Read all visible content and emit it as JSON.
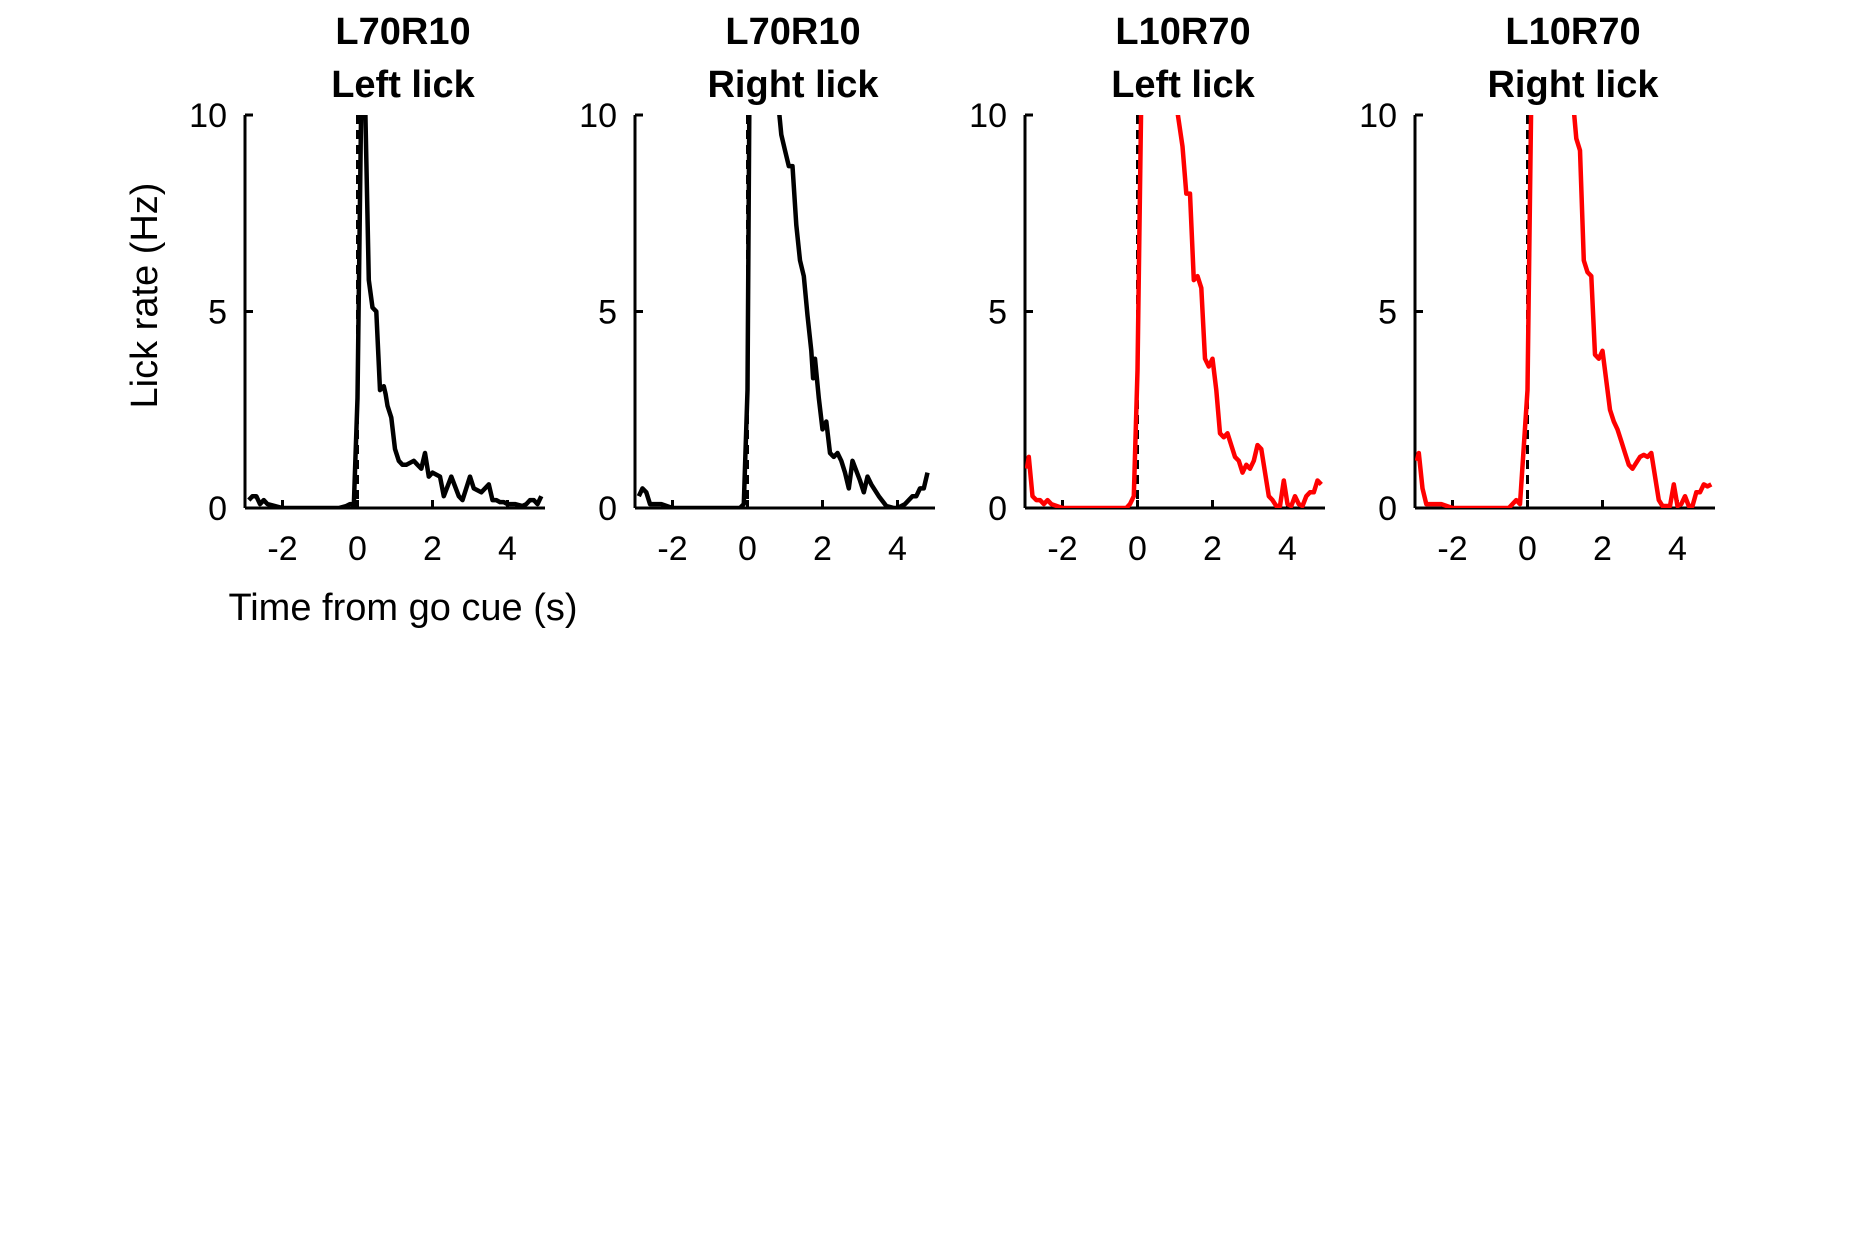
{
  "chart_data": [
    {
      "type": "line",
      "title": [
        "L70R10",
        "Left lick"
      ],
      "ylabel": "Lick rate (Hz)",
      "xlabel": "Time from go cue (s)",
      "xlim": [
        -3,
        5
      ],
      "ylim": [
        0,
        10
      ],
      "xticks": [
        -2,
        0,
        2,
        4
      ],
      "yticks": [
        0,
        5,
        10
      ],
      "go_cue": 0,
      "color": "#000000",
      "x": [
        -2.9,
        -2.8,
        -2.7,
        -2.6,
        -2.5,
        -2.4,
        -2.2,
        -2,
        -1.5,
        -1,
        -0.5,
        -0.3,
        -0.2,
        -0.15,
        -0.1,
        0,
        0.1,
        0.2,
        0.3,
        0.4,
        0.5,
        0.6,
        0.7,
        0.75,
        0.8,
        0.9,
        1.0,
        1.1,
        1.2,
        1.3,
        1.5,
        1.6,
        1.7,
        1.8,
        1.9,
        2.0,
        2.2,
        2.3,
        2.5,
        2.7,
        2.8,
        3.0,
        3.1,
        3.3,
        3.5,
        3.6,
        3.7,
        3.8,
        3.9,
        4.0,
        4.2,
        4.4,
        4.5,
        4.6,
        4.7,
        4.8,
        4.9
      ],
      "y": [
        0.2,
        0.3,
        0.3,
        0.1,
        0.2,
        0.1,
        0.05,
        0,
        0,
        0,
        0,
        0.05,
        0.1,
        0.1,
        0.05,
        2.8,
        10.5,
        10.5,
        5.8,
        5.1,
        5.0,
        3.0,
        3.1,
        2.9,
        2.6,
        2.3,
        1.5,
        1.2,
        1.1,
        1.1,
        1.2,
        1.1,
        1.0,
        1.4,
        0.8,
        0.9,
        0.8,
        0.3,
        0.8,
        0.3,
        0.2,
        0.8,
        0.5,
        0.4,
        0.6,
        0.2,
        0.2,
        0.15,
        0.15,
        0.1,
        0.1,
        0.05,
        0.1,
        0.2,
        0.2,
        0.1,
        0.3
      ]
    },
    {
      "type": "line",
      "title": [
        "L70R10",
        "Right lick"
      ],
      "xlim": [
        -3,
        5
      ],
      "ylim": [
        0,
        10
      ],
      "xticks": [
        -2,
        0,
        2,
        4
      ],
      "yticks": [
        0,
        5,
        10
      ],
      "go_cue": 0,
      "color": "#000000",
      "x": [
        -2.9,
        -2.8,
        -2.7,
        -2.6,
        -2.5,
        -2.3,
        -2.0,
        -1.5,
        -1.0,
        -0.5,
        -0.2,
        -0.1,
        0,
        0.05,
        0.1,
        0.2,
        0.5,
        0.8,
        0.9,
        1.0,
        1.1,
        1.2,
        1.3,
        1.4,
        1.5,
        1.6,
        1.7,
        1.75,
        1.8,
        1.9,
        2.0,
        2.1,
        2.2,
        2.3,
        2.4,
        2.5,
        2.6,
        2.7,
        2.8,
        3.0,
        3.1,
        3.2,
        3.3,
        3.5,
        3.7,
        3.9,
        4.0,
        4.2,
        4.3,
        4.4,
        4.5,
        4.6,
        4.7,
        4.8
      ],
      "y": [
        0.3,
        0.5,
        0.4,
        0.1,
        0.1,
        0.1,
        0,
        0,
        0,
        0,
        0,
        0.1,
        3.0,
        10.5,
        10.5,
        10.5,
        10.5,
        10.5,
        9.5,
        9.1,
        8.7,
        8.7,
        7.2,
        6.3,
        5.9,
        4.9,
        4.0,
        3.3,
        3.8,
        2.8,
        2.0,
        2.2,
        1.4,
        1.3,
        1.4,
        1.2,
        0.9,
        0.5,
        1.2,
        0.7,
        0.4,
        0.8,
        0.6,
        0.3,
        0.05,
        0,
        0,
        0.1,
        0.2,
        0.3,
        0.3,
        0.5,
        0.5,
        0.9
      ]
    },
    {
      "type": "line",
      "title": [
        "L10R70",
        "Left lick"
      ],
      "xlim": [
        -3,
        5
      ],
      "ylim": [
        0,
        10
      ],
      "xticks": [
        -2,
        0,
        2,
        4
      ],
      "yticks": [
        0,
        5,
        10
      ],
      "go_cue": 0,
      "color": "#ff0000",
      "x": [
        -2.95,
        -2.9,
        -2.8,
        -2.7,
        -2.6,
        -2.5,
        -2.4,
        -2.3,
        -2.0,
        -1.5,
        -1.0,
        -0.5,
        -0.3,
        -0.2,
        -0.1,
        0,
        0.1,
        0.5,
        0.9,
        1.0,
        1.2,
        1.3,
        1.4,
        1.5,
        1.6,
        1.7,
        1.8,
        1.9,
        2.0,
        2.1,
        2.2,
        2.3,
        2.4,
        2.6,
        2.7,
        2.8,
        2.9,
        3.0,
        3.1,
        3.2,
        3.3,
        3.5,
        3.6,
        3.7,
        3.8,
        3.9,
        4.0,
        4.1,
        4.2,
        4.3,
        4.4,
        4.5,
        4.6,
        4.7,
        4.8,
        4.9
      ],
      "y": [
        1.0,
        1.3,
        0.3,
        0.2,
        0.2,
        0.1,
        0.2,
        0.1,
        0,
        0,
        0,
        0,
        0,
        0.1,
        0.3,
        3.5,
        10.5,
        10.5,
        10.5,
        10.5,
        9.2,
        8.0,
        8.0,
        5.8,
        5.9,
        5.6,
        3.8,
        3.6,
        3.8,
        3.0,
        1.9,
        1.8,
        1.9,
        1.3,
        1.2,
        0.9,
        1.1,
        1.0,
        1.2,
        1.6,
        1.5,
        0.3,
        0.2,
        0.05,
        0.05,
        0.7,
        0.1,
        0.05,
        0.3,
        0.1,
        0.05,
        0.3,
        0.4,
        0.4,
        0.7,
        0.6
      ]
    },
    {
      "type": "line",
      "title": [
        "L10R70",
        "Right lick"
      ],
      "xlim": [
        -3,
        5
      ],
      "ylim": [
        0,
        10
      ],
      "xticks": [
        -2,
        0,
        2,
        4
      ],
      "yticks": [
        0,
        5,
        10
      ],
      "go_cue": 0,
      "color": "#ff0000",
      "x": [
        -2.95,
        -2.9,
        -2.8,
        -2.7,
        -2.6,
        -2.5,
        -2.3,
        -2.0,
        -1.5,
        -1.0,
        -0.5,
        -0.4,
        -0.3,
        -0.2,
        0,
        0.1,
        0.5,
        1.0,
        1.2,
        1.3,
        1.4,
        1.5,
        1.6,
        1.7,
        1.8,
        1.9,
        2.0,
        2.2,
        2.3,
        2.4,
        2.5,
        2.6,
        2.7,
        2.8,
        3.0,
        3.1,
        3.2,
        3.3,
        3.5,
        3.6,
        3.8,
        3.9,
        4.0,
        4.1,
        4.2,
        4.3,
        4.4,
        4.5,
        4.6,
        4.7,
        4.8,
        4.9
      ],
      "y": [
        1.2,
        1.4,
        0.5,
        0.1,
        0.1,
        0.1,
        0.1,
        0,
        0,
        0,
        0,
        0.1,
        0.2,
        0.1,
        3.0,
        10.5,
        10.5,
        10.5,
        10.5,
        9.4,
        9.1,
        6.3,
        6.0,
        5.9,
        3.9,
        3.8,
        4.0,
        2.5,
        2.2,
        2.0,
        1.7,
        1.4,
        1.1,
        1.0,
        1.3,
        1.35,
        1.3,
        1.4,
        0.2,
        0.05,
        0.05,
        0.6,
        0.05,
        0.1,
        0.3,
        0.05,
        0.05,
        0.4,
        0.4,
        0.6,
        0.55,
        0.6
      ]
    }
  ]
}
